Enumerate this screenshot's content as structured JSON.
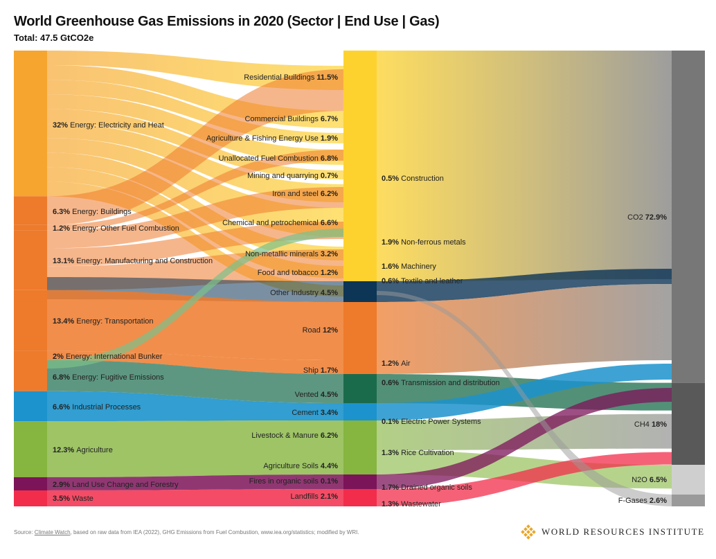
{
  "title": "World Greenhouse Gas Emissions in 2020 (Sector | End Use | Gas)",
  "subtitle": "Total: 47.5 GtCO2e",
  "source": {
    "prefix": "Source: ",
    "link": "Climate Watch",
    "rest": ", based on raw data from IEA (2022), GHG Emissions from Fuel Combustion, www.iea.org/statistics; modified by WRI."
  },
  "logo_text": "WORLD RESOURCES INSTITUTE",
  "colors": {
    "energy_elec": "#F6A52E",
    "energy_other": "#EE7A2B",
    "industrial": "#1C93CC",
    "agriculture": "#86B540",
    "landuse": "#7C1459",
    "waste": "#F22D4B",
    "enduse_yellow": "#FDD22F",
    "enduse_navy": "#0D3556",
    "enduse_orange": "#EE7A2B",
    "enduse_green": "#1A6B4B",
    "co2": "#777777",
    "ch4": "#595959",
    "n2o": "#CFCFCF",
    "fgas": "#9A9A9A",
    "gas_col": "#8D8D8D"
  },
  "chart_data": {
    "type": "sankey",
    "title": "World Greenhouse Gas Emissions in 2020 (Sector | End Use | Gas)",
    "subtitle": "Total: 47.5 GtCO2e",
    "unit": "% of total",
    "sectors": [
      {
        "pct": "32%",
        "label": "Energy: Electricity and Heat",
        "value": 32,
        "group": "energy_elec"
      },
      {
        "pct": "6.3%",
        "label": "Energy: Buildings",
        "value": 6.3,
        "group": "energy_other"
      },
      {
        "pct": "1.2%",
        "label": "Energy: Other Fuel Combustion",
        "value": 1.2,
        "group": "energy_other"
      },
      {
        "pct": "13.1%",
        "label": "Energy: Manufacturing and Construction",
        "value": 13.1,
        "group": "energy_other"
      },
      {
        "pct": "13.4%",
        "label": "Energy: Transportation",
        "value": 13.4,
        "group": "energy_other"
      },
      {
        "pct": "2%",
        "label": "Energy: International Bunker",
        "value": 2,
        "group": "energy_other"
      },
      {
        "pct": "6.8%",
        "label": "Energy: Fugitive Emissions",
        "value": 6.8,
        "group": "energy_other"
      },
      {
        "pct": "6.6%",
        "label": "Industrial Processes",
        "value": 6.6,
        "group": "industrial"
      },
      {
        "pct": "12.3%",
        "label": "Agriculture",
        "value": 12.3,
        "group": "agriculture"
      },
      {
        "pct": "2.9%",
        "label": "Land Use Change and Forestry",
        "value": 2.9,
        "group": "landuse"
      },
      {
        "pct": "3.5%",
        "label": "Waste",
        "value": 3.5,
        "group": "waste"
      }
    ],
    "end_uses": [
      {
        "label": "Residential Buildings",
        "pct": "11.5%",
        "value": 11.5,
        "color": "enduse_yellow"
      },
      {
        "label": "Commercial Buildings",
        "pct": "6.7%",
        "value": 6.7,
        "color": "enduse_yellow"
      },
      {
        "label": "Agriculture & Fishing Energy Use",
        "pct": "1.9%",
        "value": 1.9,
        "color": "enduse_yellow"
      },
      {
        "label": "Unallocated Fuel Combustion",
        "pct": "6.8%",
        "value": 6.8,
        "color": "enduse_yellow"
      },
      {
        "label": "Mining and quarrying",
        "pct": "0.7%",
        "value": 0.7,
        "color": "enduse_yellow"
      },
      {
        "label": "Construction",
        "pct": "0.5%",
        "value": 0.5,
        "color": "enduse_yellow"
      },
      {
        "label": "Iron and steel",
        "pct": "6.2%",
        "value": 6.2,
        "color": "enduse_yellow"
      },
      {
        "label": "Non-ferrous metals",
        "pct": "1.9%",
        "value": 1.9,
        "color": "enduse_yellow"
      },
      {
        "label": "Machinery",
        "pct": "1.6%",
        "value": 1.6,
        "color": "enduse_yellow"
      },
      {
        "label": "Textile and leather",
        "pct": "0.6%",
        "value": 0.6,
        "color": "enduse_yellow"
      },
      {
        "label": "Chemical and petrochemical",
        "pct": "6.6%",
        "value": 6.6,
        "color": "enduse_yellow"
      },
      {
        "label": "Non-metallic minerals",
        "pct": "3.2%",
        "value": 3.2,
        "color": "enduse_yellow"
      },
      {
        "label": "Food and tobacco",
        "pct": "1.2%",
        "value": 1.2,
        "color": "enduse_yellow"
      },
      {
        "label": "Other Industry",
        "pct": "4.5%",
        "value": 4.5,
        "color": "enduse_navy"
      },
      {
        "label": "Road",
        "pct": "12%",
        "value": 12,
        "color": "enduse_orange"
      },
      {
        "label": "Air",
        "pct": "1.2%",
        "value": 1.2,
        "color": "enduse_orange"
      },
      {
        "label": "Ship",
        "pct": "1.7%",
        "value": 1.7,
        "color": "enduse_orange"
      },
      {
        "label": "Transmission and distribution",
        "pct": "0.6%",
        "value": 0.6,
        "color": "enduse_green"
      },
      {
        "label": "Vented",
        "pct": "4.5%",
        "value": 4.5,
        "color": "enduse_green"
      },
      {
        "label": "Cement",
        "pct": "3.4%",
        "value": 3.4,
        "color": "industrial"
      },
      {
        "label": "Electric Power Systems",
        "pct": "0.1%",
        "value": 0.1,
        "color": "industrial"
      },
      {
        "label": "Livestock & Manure",
        "pct": "6.2%",
        "value": 6.2,
        "color": "agriculture"
      },
      {
        "label": "Rice Cultivation",
        "pct": "1.3%",
        "value": 1.3,
        "color": "agriculture"
      },
      {
        "label": "Agriculture Soils",
        "pct": "4.4%",
        "value": 4.4,
        "color": "agriculture"
      },
      {
        "label": "Fires in organic soils",
        "pct": "0.1%",
        "value": 0.1,
        "color": "landuse"
      },
      {
        "label": "Drained organic soils",
        "pct": "1.7%",
        "value": 1.7,
        "color": "landuse"
      },
      {
        "label": "Landfills",
        "pct": "2.1%",
        "value": 2.1,
        "color": "waste"
      },
      {
        "label": "Wastewater",
        "pct": "1.3%",
        "value": 1.3,
        "color": "waste"
      }
    ],
    "gases": [
      {
        "label": "CO2",
        "pct": "72.9%",
        "value": 72.9,
        "color": "co2"
      },
      {
        "label": "CH4",
        "pct": "18%",
        "value": 18,
        "color": "ch4"
      },
      {
        "label": "N2O",
        "pct": "6.5%",
        "value": 6.5,
        "color": "n2o"
      },
      {
        "label": "F-Gases",
        "pct": "2.6%",
        "value": 2.6,
        "color": "fgas"
      }
    ]
  }
}
